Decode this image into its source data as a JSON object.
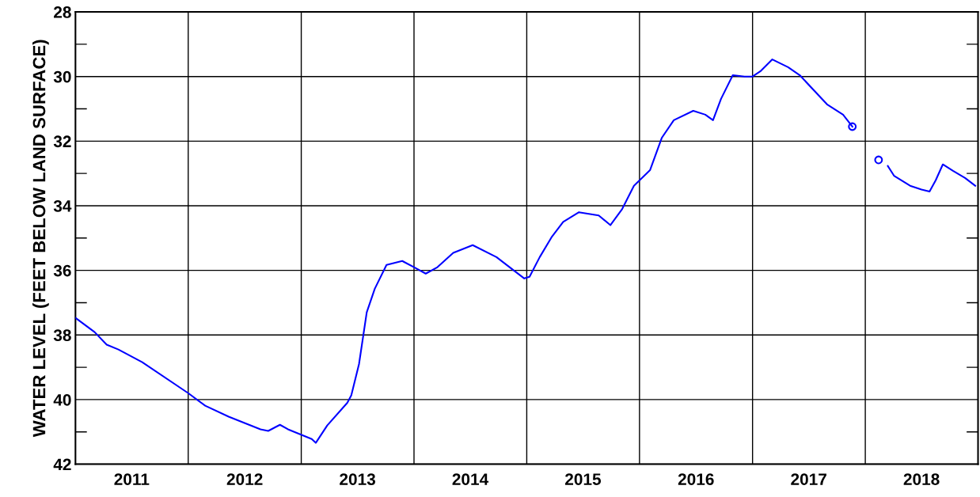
{
  "chart_data": {
    "type": "line",
    "ylabel": "WATER LEVEL (FEET BELOW LAND SURFACE)",
    "xlim": [
      "2011-01-01",
      "2019-01-01"
    ],
    "xticks": [
      {
        "value": "2012-01-01",
        "label": null
      },
      {
        "value": "2013-01-01",
        "label": null
      },
      {
        "value": "2014-01-01",
        "label": null
      },
      {
        "value": "2015-01-01",
        "label": null
      },
      {
        "value": "2016-01-01",
        "label": null
      },
      {
        "value": "2017-01-01",
        "label": null
      },
      {
        "value": "2018-01-01",
        "label": null
      },
      {
        "value": "2011-07-02",
        "label": "2011"
      },
      {
        "value": "2012-07-02",
        "label": "2012"
      },
      {
        "value": "2013-07-02",
        "label": "2013"
      },
      {
        "value": "2014-07-02",
        "label": "2014"
      },
      {
        "value": "2015-07-02",
        "label": "2015"
      },
      {
        "value": "2016-07-02",
        "label": "2016"
      },
      {
        "value": "2017-07-02",
        "label": "2017"
      },
      {
        "value": "2018-07-02",
        "label": "2018"
      }
    ],
    "ylim": [
      42,
      28
    ],
    "yticks": [
      28,
      30,
      32,
      34,
      36,
      38,
      40,
      42,
      {
        "value": 29,
        "label": null
      },
      {
        "value": 31,
        "label": null
      },
      {
        "value": 33,
        "label": null
      },
      {
        "value": 35,
        "label": null
      },
      {
        "value": 37,
        "label": null
      },
      {
        "value": 39,
        "label": null
      },
      {
        "value": 41,
        "label": null
      }
    ],
    "grid": true,
    "legend": false,
    "series": [
      {
        "color": "#0000ff",
        "marker": "none",
        "line_style": "solid",
        "x": [
          "2011-01-01",
          "2011-03-04",
          "2011-04-12",
          "2011-05-20",
          "2011-08-05",
          "2012-01-01",
          "2012-02-25",
          "2012-05-11",
          "2012-08-22",
          "2012-09-16",
          "2012-10-24",
          "2012-11-19",
          "2013-02-04",
          "2013-02-17",
          "2013-03-26",
          "2013-05-30",
          "2013-06-12",
          "2013-07-07",
          "2013-08-01",
          "2013-08-27",
          "2013-10-04",
          "2013-11-24",
          "2014-01-01",
          "2014-02-08",
          "2014-03-18",
          "2014-05-08",
          "2014-07-10",
          "2014-09-25",
          "2014-12-24",
          "2015-01-10",
          "2015-02-12",
          "2015-03-22",
          "2015-04-29",
          "2015-06-19",
          "2015-08-22",
          "2015-09-29",
          "2015-11-06",
          "2015-12-14",
          "2016-02-04",
          "2016-03-13",
          "2016-04-21",
          "2016-06-23",
          "2016-08-01",
          "2016-08-26",
          "2016-09-21",
          "2016-10-29",
          "2016-12-06",
          "2017-01-01",
          "2017-01-26",
          "2017-03-06",
          "2017-04-26",
          "2017-06-03",
          "2017-08-30",
          "2017-10-21",
          "2017-11-20",
          "2018-01-01",
          "2018-03-15",
          "2018-04-04",
          "2018-05-26",
          "2018-07-02",
          "2018-07-28",
          "2018-08-17",
          "2018-09-09",
          "2018-10-12",
          "2018-11-20",
          "2018-12-23"
        ],
        "values": [
          37.47,
          37.91,
          38.3,
          38.45,
          38.84,
          39.8,
          40.19,
          40.53,
          40.92,
          40.97,
          40.78,
          40.92,
          41.22,
          41.34,
          40.8,
          40.1,
          39.87,
          38.9,
          37.3,
          36.57,
          35.83,
          35.71,
          35.9,
          36.1,
          35.9,
          35.46,
          35.22,
          35.59,
          36.25,
          36.2,
          35.59,
          34.98,
          34.5,
          34.2,
          34.3,
          34.6,
          34.1,
          33.38,
          32.9,
          31.9,
          31.35,
          31.06,
          31.18,
          31.35,
          30.69,
          29.96,
          30.0,
          30.0,
          29.84,
          29.47,
          29.71,
          29.96,
          30.86,
          31.18,
          31.55,
          null,
          32.77,
          33.07,
          33.38,
          33.5,
          33.56,
          33.21,
          32.72,
          32.92,
          33.14,
          33.38
        ]
      },
      {
        "type": "scatter",
        "color": "#0000ff",
        "marker": "circle",
        "x": [
          "2017-11-20",
          "2018-02-13"
        ],
        "values": [
          31.55,
          32.58
        ]
      }
    ]
  }
}
